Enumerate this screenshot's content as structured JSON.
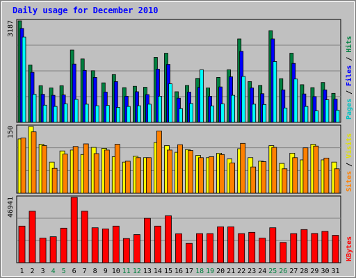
{
  "title": "Daily usage for December 2010",
  "chart_data": [
    {
      "type": "bar",
      "panel": "hits-files-pages",
      "x": [
        1,
        2,
        3,
        4,
        5,
        6,
        7,
        8,
        9,
        10,
        11,
        12,
        13,
        14,
        15,
        16,
        17,
        18,
        19,
        20,
        21,
        22,
        23,
        24,
        25,
        26,
        27,
        28,
        29,
        30,
        31
      ],
      "y_max_label": "3187",
      "ylim": [
        0,
        3187
      ],
      "grid": true,
      "series": [
        {
          "name": "Hits",
          "color": "#008040",
          "values": [
            3187,
            1800,
            1150,
            1080,
            1150,
            2270,
            1990,
            1620,
            1240,
            1500,
            1090,
            1130,
            1100,
            2040,
            2170,
            960,
            1160,
            1380,
            1080,
            1410,
            1650,
            2620,
            1280,
            1160,
            2880,
            1370,
            2170,
            1180,
            1090,
            1250,
            910
          ]
        },
        {
          "name": "Files",
          "color": "#0000ff",
          "values": [
            2950,
            1570,
            880,
            850,
            860,
            1830,
            1630,
            1410,
            950,
            1280,
            820,
            960,
            870,
            1670,
            1820,
            760,
            950,
            1100,
            820,
            1110,
            1430,
            2230,
            1080,
            900,
            2620,
            1020,
            1850,
            890,
            810,
            1020,
            730
          ]
        },
        {
          "name": "Pages",
          "color": "#00ffff",
          "values": [
            2680,
            880,
            540,
            500,
            580,
            720,
            570,
            520,
            530,
            470,
            500,
            520,
            570,
            820,
            1210,
            430,
            590,
            1650,
            510,
            580,
            850,
            1440,
            570,
            560,
            1910,
            450,
            1360,
            500,
            360,
            710,
            380
          ]
        }
      ]
    },
    {
      "type": "bar",
      "panel": "visits-sites",
      "x": [
        1,
        2,
        3,
        4,
        5,
        6,
        7,
        8,
        9,
        10,
        11,
        12,
        13,
        14,
        15,
        16,
        17,
        18,
        19,
        20,
        21,
        22,
        23,
        24,
        25,
        26,
        27,
        28,
        29,
        30,
        31
      ],
      "y_max_label": "150",
      "ylim": [
        0,
        150
      ],
      "grid": true,
      "series": [
        {
          "name": "Visits",
          "color": "#ffff00",
          "values": [
            122,
            150,
            110,
            70,
            95,
            97,
            87,
            103,
            101,
            82,
            70,
            83,
            80,
            114,
            107,
            92,
            98,
            85,
            80,
            90,
            77,
            100,
            80,
            72,
            107,
            67,
            90,
            75,
            110,
            75,
            70
          ]
        },
        {
          "name": "Sites",
          "color": "#ff8000",
          "values": [
            124,
            138,
            107,
            56,
            88,
            105,
            111,
            89,
            97,
            110,
            72,
            80,
            80,
            140,
            97,
            109,
            96,
            80,
            82,
            87,
            68,
            112,
            59,
            71,
            103,
            55,
            80,
            102,
            106,
            79,
            55
          ]
        }
      ]
    },
    {
      "type": "bar",
      "panel": "kbytes",
      "x": [
        1,
        2,
        3,
        4,
        5,
        6,
        7,
        8,
        9,
        10,
        11,
        12,
        13,
        14,
        15,
        16,
        17,
        18,
        19,
        20,
        21,
        22,
        23,
        24,
        25,
        26,
        27,
        28,
        29,
        30,
        31
      ],
      "y_max_label": "46941",
      "ylim": [
        0,
        46941
      ],
      "grid": true,
      "series": [
        {
          "name": "KBytes",
          "color": "#ff0000",
          "values": [
            26300,
            37000,
            17700,
            18700,
            24800,
            46941,
            37000,
            25100,
            24300,
            26300,
            17400,
            20200,
            31900,
            26300,
            33700,
            20800,
            13900,
            20900,
            20900,
            25800,
            25800,
            20900,
            21800,
            17700,
            25100,
            14600,
            20900,
            23800,
            21000,
            22500,
            19700
          ]
        }
      ]
    }
  ],
  "x_tick_labels": [
    "1",
    "2",
    "3",
    "4",
    "5",
    "6",
    "7",
    "8",
    "9",
    "10",
    "11",
    "12",
    "13",
    "14",
    "15",
    "16",
    "17",
    "18",
    "19",
    "20",
    "21",
    "22",
    "23",
    "24",
    "25",
    "26",
    "27",
    "28",
    "29",
    "30",
    "31"
  ],
  "weekend_days": [
    4,
    5,
    11,
    12,
    18,
    19,
    25,
    26
  ],
  "colors": {
    "title": "#0000ff",
    "weekday_tick": "#000000",
    "weekend_tick": "#008040",
    "plot_bg": "#c0c0c0",
    "frame_bg": "#d4d4d4",
    "grid": "#808080"
  }
}
